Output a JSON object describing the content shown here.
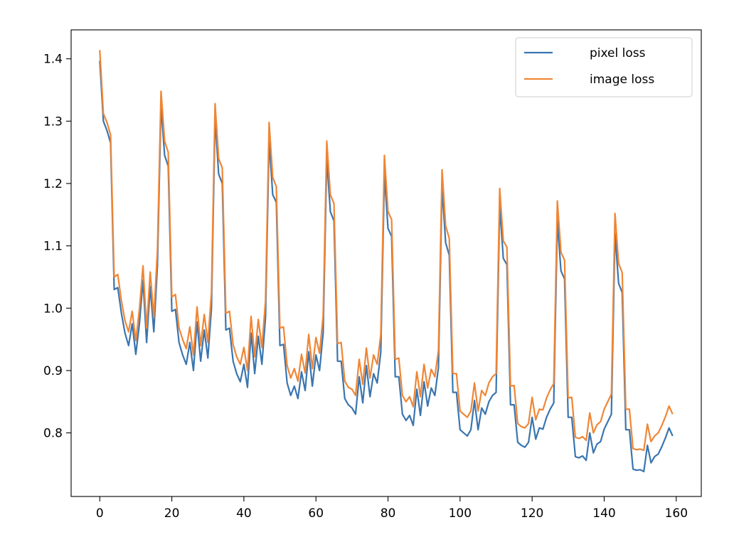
{
  "chart_data": {
    "type": "line",
    "title": "",
    "xlabel": "",
    "ylabel": "",
    "xlim": [
      -7.95,
      166.95
    ],
    "ylim": [
      0.698,
      1.4464
    ],
    "grid": false,
    "legend_placement": "top-right",
    "x_ticks": [
      0,
      20,
      40,
      60,
      80,
      100,
      120,
      140,
      160
    ],
    "y_ticks": [
      0.8,
      0.9,
      1.0,
      1.1,
      1.2,
      1.3,
      1.4
    ],
    "x_tick_labels": [
      "0",
      "20",
      "40",
      "60",
      "80",
      "100",
      "120",
      "140",
      "160"
    ],
    "y_tick_labels": [
      "0.8",
      "0.9",
      "1.0",
      "1.1",
      "1.2",
      "1.3",
      "1.4"
    ],
    "series": [
      {
        "name": "pixel loss",
        "color": "#3a75b0",
        "values": [
          1.397,
          1.3,
          1.285,
          1.265,
          1.03,
          1.033,
          0.992,
          0.96,
          0.94,
          0.975,
          0.926,
          0.975,
          1.045,
          0.945,
          1.035,
          0.962,
          1.068,
          1.325,
          1.245,
          1.228,
          0.995,
          0.998,
          0.945,
          0.925,
          0.91,
          0.945,
          0.9,
          0.978,
          0.915,
          0.965,
          0.92,
          1.0,
          1.305,
          1.215,
          1.2,
          0.965,
          0.968,
          0.915,
          0.895,
          0.882,
          0.91,
          0.873,
          0.96,
          0.895,
          0.955,
          0.91,
          0.985,
          1.27,
          1.182,
          1.17,
          0.94,
          0.942,
          0.88,
          0.86,
          0.875,
          0.855,
          0.898,
          0.868,
          0.93,
          0.875,
          0.925,
          0.9,
          0.96,
          1.24,
          1.155,
          1.14,
          0.915,
          0.915,
          0.855,
          0.845,
          0.84,
          0.83,
          0.89,
          0.848,
          0.908,
          0.858,
          0.895,
          0.88,
          0.93,
          1.215,
          1.128,
          1.115,
          0.89,
          0.89,
          0.83,
          0.82,
          0.828,
          0.812,
          0.87,
          0.828,
          0.882,
          0.843,
          0.872,
          0.86,
          0.905,
          1.195,
          1.105,
          1.085,
          0.865,
          0.865,
          0.805,
          0.8,
          0.795,
          0.805,
          0.852,
          0.805,
          0.84,
          0.83,
          0.85,
          0.86,
          0.865,
          1.165,
          1.08,
          1.07,
          0.845,
          0.845,
          0.785,
          0.78,
          0.777,
          0.785,
          0.825,
          0.79,
          0.808,
          0.806,
          0.825,
          0.838,
          0.848,
          1.14,
          1.06,
          1.047,
          0.825,
          0.825,
          0.762,
          0.76,
          0.763,
          0.756,
          0.8,
          0.768,
          0.782,
          0.786,
          0.806,
          0.818,
          0.83,
          1.12,
          1.04,
          1.025,
          0.805,
          0.805,
          0.742,
          0.74,
          0.741,
          0.738,
          0.78,
          0.752,
          0.762,
          0.766,
          0.778,
          0.792,
          0.808,
          0.795
        ]
      },
      {
        "name": "image loss",
        "color": "#ef8636",
        "values": [
          1.414,
          1.312,
          1.298,
          1.278,
          1.05,
          1.054,
          1.012,
          0.98,
          0.962,
          0.995,
          0.948,
          0.998,
          1.068,
          0.968,
          1.058,
          0.985,
          1.092,
          1.348,
          1.268,
          1.25,
          1.018,
          1.022,
          0.968,
          0.95,
          0.935,
          0.97,
          0.925,
          1.002,
          0.94,
          0.99,
          0.945,
          1.025,
          1.328,
          1.24,
          1.225,
          0.992,
          0.995,
          0.942,
          0.922,
          0.91,
          0.937,
          0.9,
          0.987,
          0.922,
          0.982,
          0.937,
          1.012,
          1.298,
          1.21,
          1.195,
          0.968,
          0.97,
          0.908,
          0.888,
          0.903,
          0.883,
          0.926,
          0.896,
          0.958,
          0.903,
          0.953,
          0.928,
          0.988,
          1.268,
          1.182,
          1.168,
          0.943,
          0.945,
          0.883,
          0.873,
          0.87,
          0.86,
          0.918,
          0.878,
          0.936,
          0.888,
          0.925,
          0.91,
          0.958,
          1.245,
          1.155,
          1.142,
          0.918,
          0.92,
          0.86,
          0.85,
          0.858,
          0.842,
          0.898,
          0.858,
          0.91,
          0.872,
          0.902,
          0.89,
          0.932,
          1.222,
          1.132,
          1.112,
          0.895,
          0.895,
          0.835,
          0.83,
          0.825,
          0.835,
          0.88,
          0.835,
          0.868,
          0.86,
          0.88,
          0.89,
          0.895,
          1.192,
          1.108,
          1.098,
          0.875,
          0.876,
          0.815,
          0.81,
          0.808,
          0.815,
          0.857,
          0.821,
          0.838,
          0.837,
          0.856,
          0.869,
          0.879,
          1.172,
          1.09,
          1.077,
          0.856,
          0.857,
          0.793,
          0.791,
          0.794,
          0.788,
          0.832,
          0.8,
          0.813,
          0.818,
          0.838,
          0.85,
          0.862,
          1.152,
          1.072,
          1.057,
          0.838,
          0.838,
          0.775,
          0.773,
          0.774,
          0.772,
          0.814,
          0.786,
          0.795,
          0.8,
          0.812,
          0.826,
          0.843,
          0.83
        ]
      }
    ]
  }
}
